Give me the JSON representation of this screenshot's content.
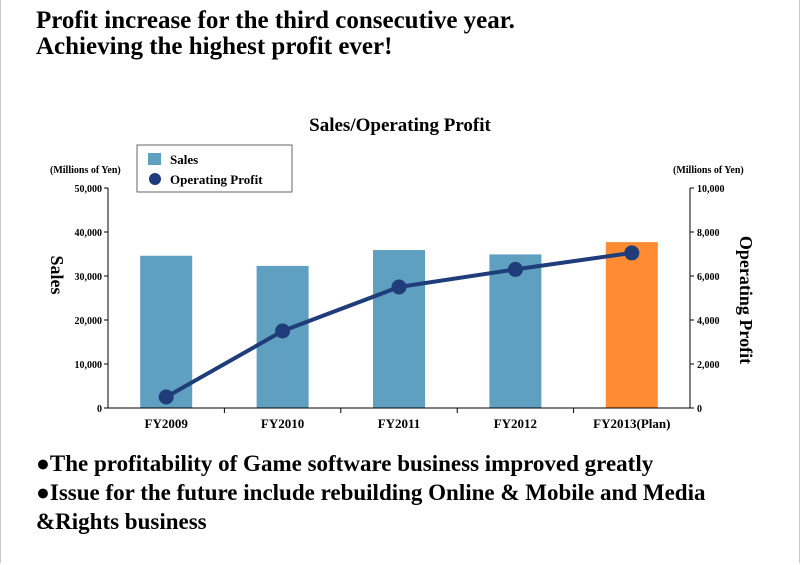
{
  "headline": {
    "line1": "Profit increase for the third consecutive year.",
    "line2": "Achieving the highest profit ever!"
  },
  "chart_data": {
    "type": "bar",
    "title": "Sales/Operating Profit",
    "categories": [
      "FY2009",
      "FY2010",
      "FY2011",
      "FY2012",
      "FY2013(Plan)"
    ],
    "series": [
      {
        "name": "Sales",
        "type": "bar",
        "axis": "left",
        "values": [
          34600,
          32300,
          35900,
          34900,
          37700
        ],
        "colors": [
          "#5f9fbf",
          "#5f9fbf",
          "#5f9fbf",
          "#5f9fbf",
          "#ff8c32"
        ]
      },
      {
        "name": "Operating Profit",
        "type": "line",
        "axis": "right",
        "values": [
          500,
          3500,
          5500,
          6300,
          7050
        ],
        "color": "#1f3d7a"
      }
    ],
    "ylabel": "Sales",
    "y2label": "Operating Profit",
    "yunit": "(Millions of Yen)",
    "y2unit": "(Millions of Yen)",
    "ylim": [
      0,
      50000
    ],
    "y2lim": [
      0,
      10000
    ],
    "yticks": [
      "0",
      "10,000",
      "20,000",
      "30,000",
      "40,000",
      "50,000"
    ],
    "y2ticks": [
      "0",
      "2,000",
      "4,000",
      "6,000",
      "8,000",
      "10,000"
    ],
    "legend": [
      "Sales",
      "Operating Profit"
    ],
    "legend_position": "top-left",
    "grid": false
  },
  "bullets": [
    "●The profitability of Game software business improved greatly",
    "●Issue for the future include rebuilding Online & Mobile and Media &Rights business"
  ]
}
